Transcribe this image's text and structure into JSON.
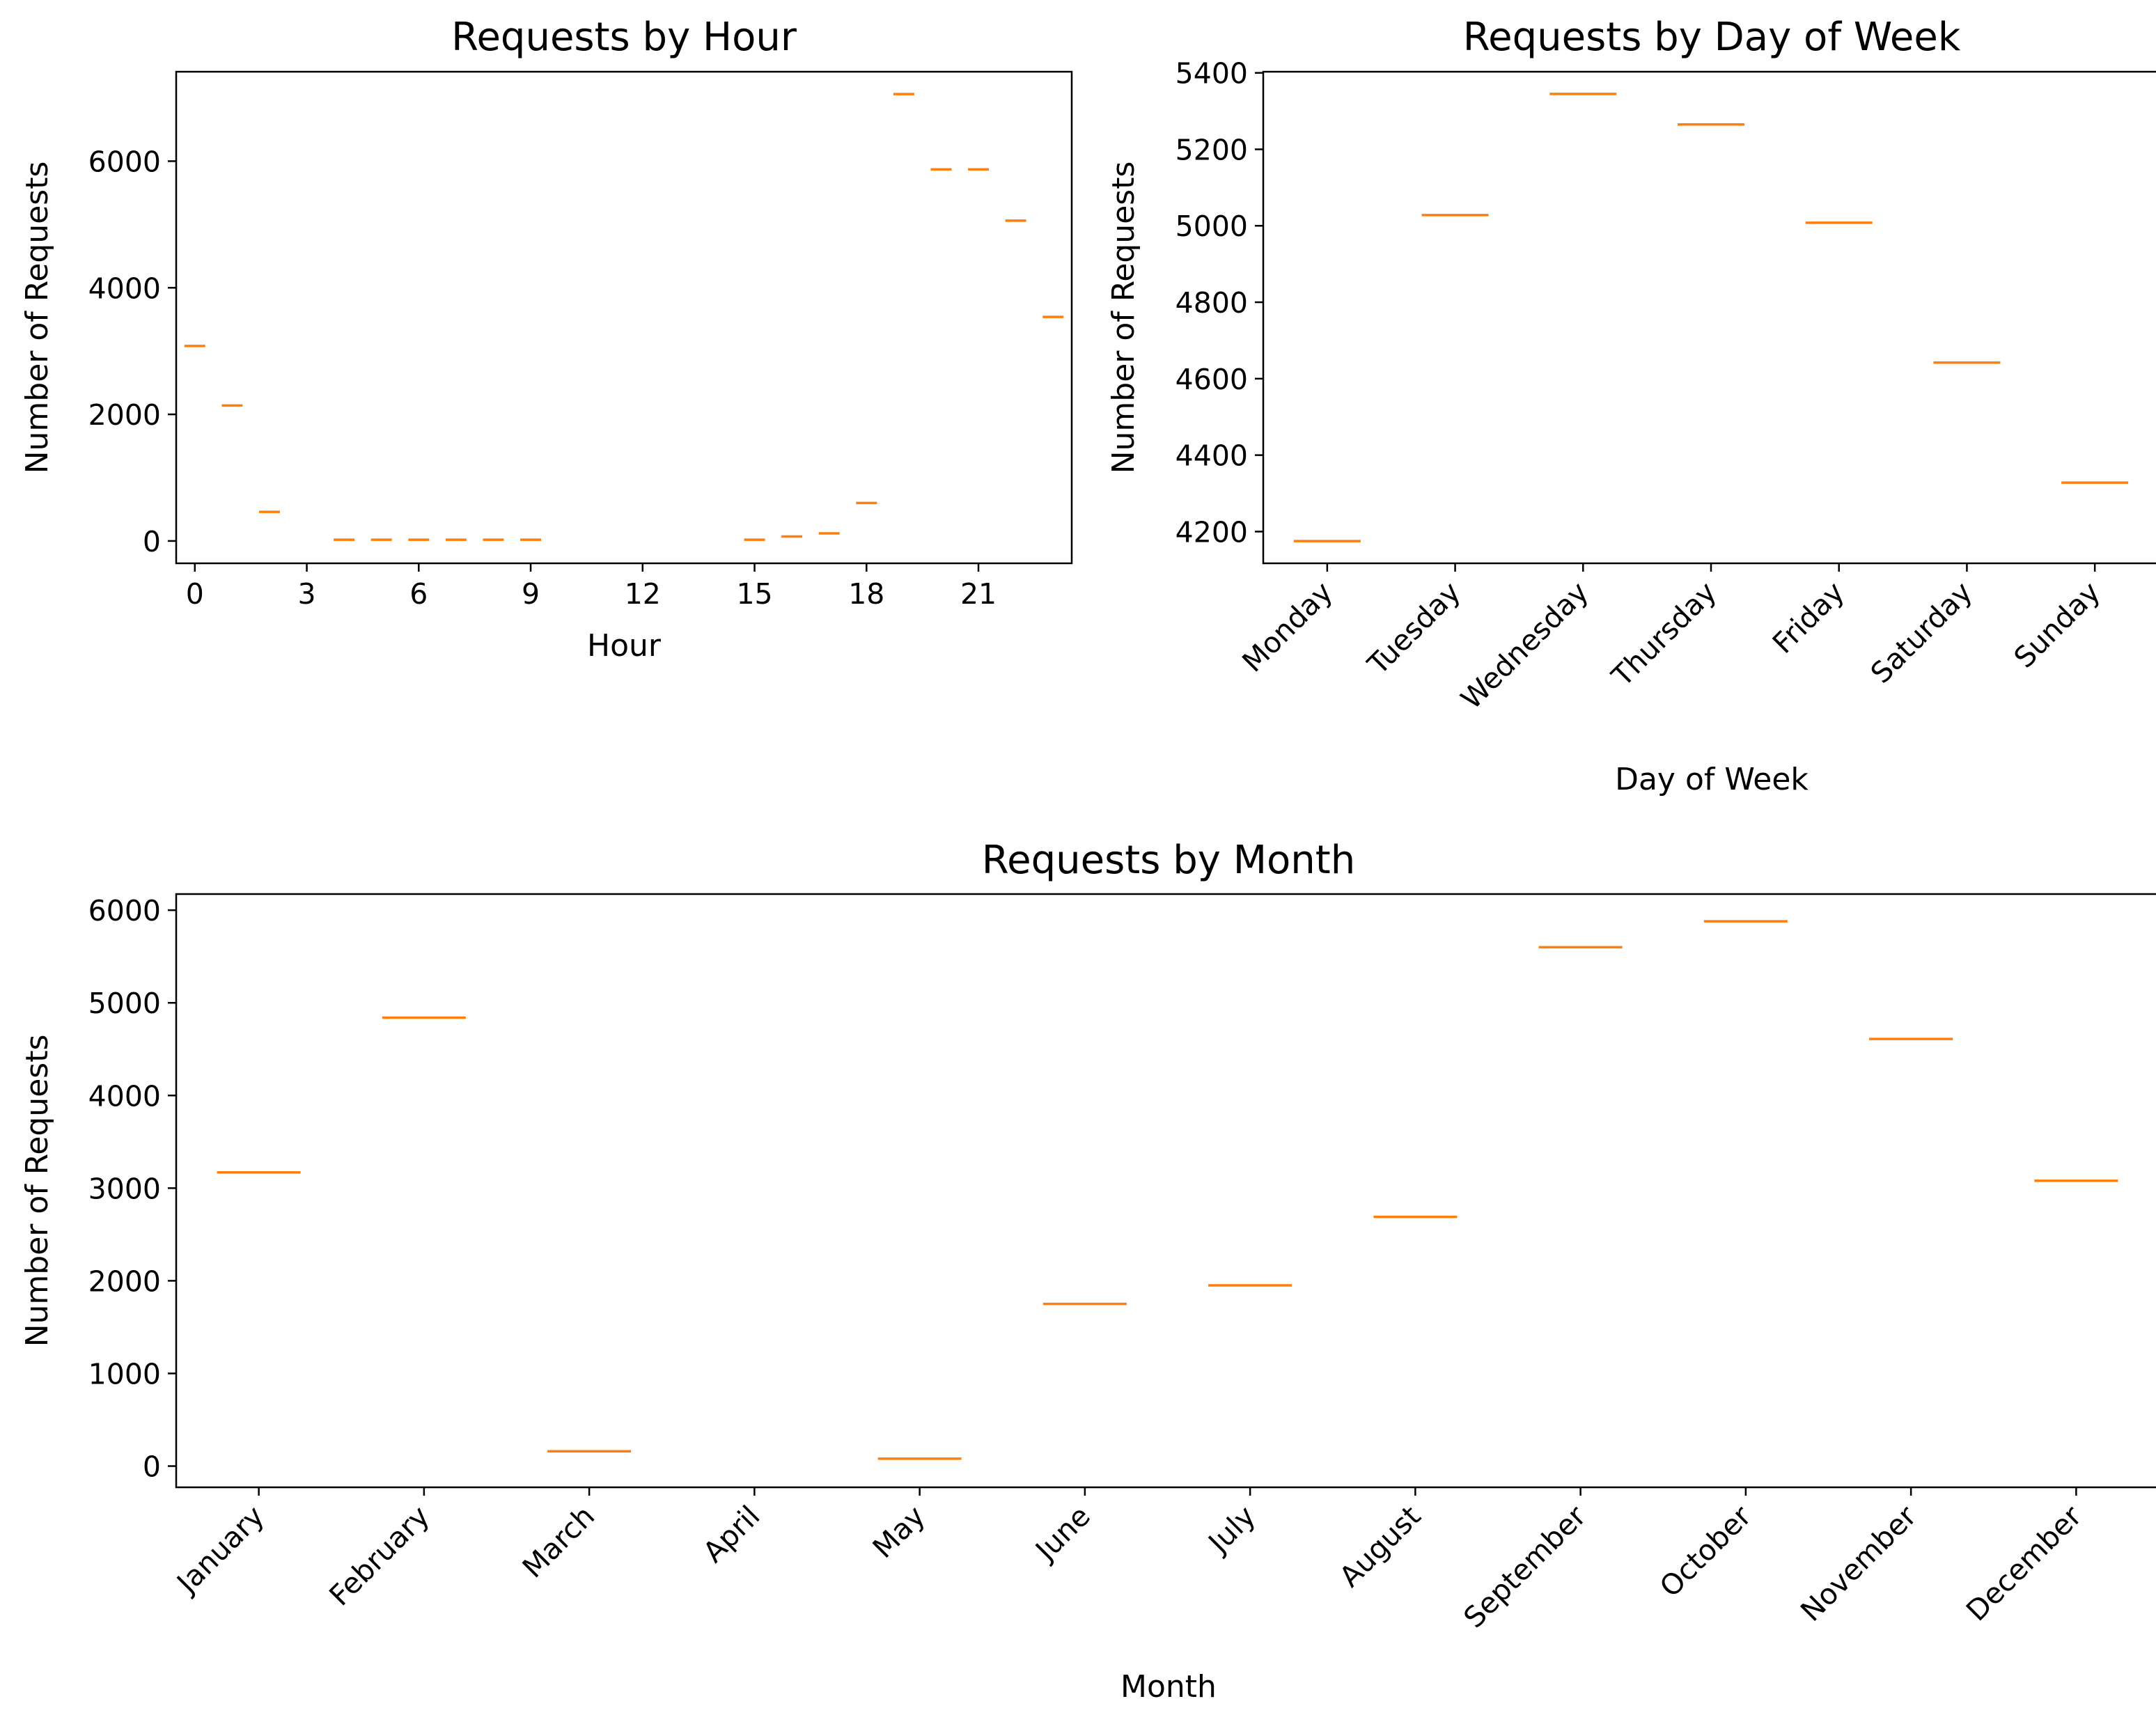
{
  "colors": {
    "median_line": "#ff7f0e",
    "axes": "#000000",
    "background": "#ffffff"
  },
  "chart_data": [
    {
      "id": "hour",
      "type": "box",
      "title": "Requests by Hour",
      "xlabel": "Hour",
      "ylabel": "Number of Requests",
      "x": [
        0,
        1,
        2,
        4,
        5,
        6,
        7,
        8,
        9,
        15,
        16,
        17,
        18,
        19,
        20,
        21,
        22,
        23
      ],
      "values": [
        3080,
        2140,
        460,
        20,
        20,
        20,
        20,
        20,
        20,
        20,
        70,
        120,
        600,
        7060,
        5870,
        5870,
        5060,
        3540
      ],
      "xlim": [
        -0.5,
        23.5
      ],
      "ylim": [
        -353,
        7413
      ],
      "xticks": [
        0,
        3,
        6,
        9,
        12,
        15,
        18,
        21
      ],
      "yticks": [
        0,
        2000,
        4000,
        6000
      ],
      "grid": false
    },
    {
      "id": "day",
      "type": "box",
      "title": "Requests by Day of Week",
      "xlabel": "Day of Week",
      "ylabel": "Number of Requests",
      "categories": [
        "Monday",
        "Tuesday",
        "Wednesday",
        "Thursday",
        "Friday",
        "Saturday",
        "Sunday"
      ],
      "values": [
        4175,
        5028,
        5345,
        5265,
        5008,
        4642,
        4328
      ],
      "ylim": [
        4117,
        5403
      ],
      "yticks": [
        4200,
        4400,
        4600,
        4800,
        5000,
        5200,
        5400
      ],
      "grid": false
    },
    {
      "id": "month",
      "type": "box",
      "title": "Requests by Month",
      "xlabel": "Month",
      "ylabel": "Number of Requests",
      "categories": [
        "January",
        "February",
        "March",
        "April",
        "May",
        "June",
        "July",
        "August",
        "September",
        "October",
        "November",
        "December"
      ],
      "values": [
        3170,
        4840,
        160,
        null,
        80,
        1750,
        1950,
        2690,
        5600,
        5880,
        4610,
        3080
      ],
      "ylim": [
        -229,
        6174
      ],
      "yticks": [
        0,
        1000,
        2000,
        3000,
        4000,
        5000,
        6000
      ],
      "grid": false
    }
  ]
}
